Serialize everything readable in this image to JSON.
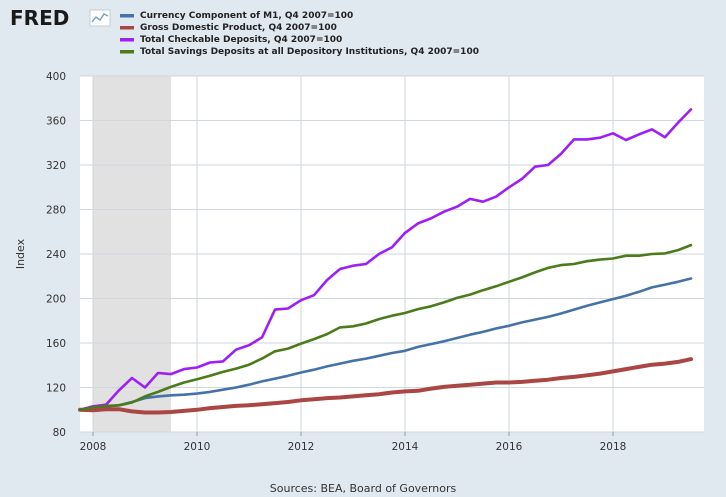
{
  "brand": {
    "name": "FRED",
    "logo_icon": "line-chart-icon"
  },
  "colors": {
    "background": "#e1e9f0",
    "plot_background": "#ffffff",
    "grid": "#d0d7de",
    "recession": "#e1e1e1"
  },
  "chart_data": {
    "type": "line",
    "xlim": [
      2007.75,
      2019.75
    ],
    "ylim": [
      80,
      400
    ],
    "ylabel": "Index",
    "xlabel": "",
    "x_ticks": [
      2008,
      2010,
      2012,
      2014,
      2016,
      2018
    ],
    "y_ticks": [
      80,
      120,
      160,
      200,
      240,
      280,
      320,
      360,
      400
    ],
    "grid": true,
    "legend_position": "top-left",
    "recession_shading": [
      [
        2008.0,
        2009.5
      ]
    ],
    "series": [
      {
        "name": "Currency Component of M1, Q4 2007=100",
        "color": "#4572a7",
        "x": [
          2007.75,
          2008.0,
          2008.25,
          2008.5,
          2008.75,
          2009.0,
          2009.25,
          2009.5,
          2009.75,
          2010.0,
          2010.25,
          2010.5,
          2010.75,
          2011.0,
          2011.25,
          2011.5,
          2011.75,
          2012.0,
          2012.25,
          2012.5,
          2012.75,
          2013.0,
          2013.25,
          2013.5,
          2013.75,
          2014.0,
          2014.25,
          2014.5,
          2014.75,
          2015.0,
          2015.25,
          2015.5,
          2015.75,
          2016.0,
          2016.25,
          2016.5,
          2016.75,
          2017.0,
          2017.25,
          2017.5,
          2017.75,
          2018.0,
          2018.25,
          2018.5,
          2018.75,
          2019.0,
          2019.25,
          2019.5
        ],
        "y": [
          100,
          101.5,
          103,
          104,
          107,
          110.5,
          112,
          113,
          113.5,
          114.5,
          116,
          118,
          120,
          122.5,
          125.5,
          128,
          130.5,
          133.5,
          136,
          139,
          141.5,
          144,
          146,
          148.5,
          151,
          153,
          156.5,
          159,
          161.5,
          164.5,
          167.5,
          170,
          173,
          175.5,
          178.5,
          181,
          183.5,
          186.5,
          190,
          193.5,
          196.5,
          199.5,
          202.5,
          206,
          210,
          212.5,
          215,
          218
        ]
      },
      {
        "name": "Gross Domestic Product, Q4 2007=100",
        "color": "#aa4643",
        "x": [
          2007.75,
          2008.0,
          2008.25,
          2008.5,
          2008.75,
          2009.0,
          2009.25,
          2009.5,
          2009.75,
          2010.0,
          2010.25,
          2010.5,
          2010.75,
          2011.0,
          2011.25,
          2011.5,
          2011.75,
          2012.0,
          2012.25,
          2012.5,
          2012.75,
          2013.0,
          2013.25,
          2013.5,
          2013.75,
          2014.0,
          2014.25,
          2014.5,
          2014.75,
          2015.0,
          2015.25,
          2015.5,
          2015.75,
          2016.0,
          2016.25,
          2016.5,
          2016.75,
          2017.0,
          2017.25,
          2017.5,
          2017.75,
          2018.0,
          2018.25,
          2018.5,
          2018.75,
          2019.0,
          2019.25,
          2019.5
        ],
        "y": [
          100,
          99.5,
          100.5,
          100.5,
          98.5,
          97.5,
          97.5,
          98,
          99,
          100,
          101.5,
          102.5,
          103.5,
          104,
          105,
          106,
          107,
          108.5,
          109.5,
          110.5,
          111,
          112,
          113,
          114,
          115.5,
          116.5,
          117,
          119,
          120.5,
          121.5,
          122.5,
          123.5,
          124.5,
          124.5,
          125,
          126,
          127,
          128.5,
          129.5,
          131,
          132.5,
          134.5,
          136.5,
          138.5,
          140.5,
          141.5,
          143,
          145.5
        ]
      },
      {
        "name": "Total Checkable Deposits, Q4 2007=100",
        "color": "#9e1ff5",
        "x": [
          2007.75,
          2008.0,
          2008.25,
          2008.5,
          2008.75,
          2009.0,
          2009.25,
          2009.5,
          2009.75,
          2010.0,
          2010.25,
          2010.5,
          2010.75,
          2011.0,
          2011.25,
          2011.5,
          2011.75,
          2012.0,
          2012.25,
          2012.5,
          2012.75,
          2013.0,
          2013.25,
          2013.5,
          2013.75,
          2014.0,
          2014.25,
          2014.5,
          2014.75,
          2015.0,
          2015.25,
          2015.5,
          2015.75,
          2016.0,
          2016.25,
          2016.5,
          2016.75,
          2017.0,
          2017.25,
          2017.5,
          2017.75,
          2018.0,
          2018.25,
          2018.5,
          2018.75,
          2019.0,
          2019.25,
          2019.5
        ],
        "y": [
          100,
          103,
          104.5,
          117.5,
          128.5,
          120,
          133,
          132,
          136.5,
          138,
          142.5,
          143.5,
          154,
          158,
          165,
          190,
          191,
          198.5,
          203,
          216.5,
          226.5,
          229.5,
          231,
          240,
          246,
          259,
          267.5,
          272,
          278,
          282.5,
          289.5,
          287,
          291.5,
          300,
          307.5,
          318.5,
          320,
          330,
          343,
          343,
          344.5,
          348.5,
          342.5,
          347.5,
          352,
          345,
          358,
          370
        ]
      },
      {
        "name": "Total Savings Deposits at all Depository Institutions, Q4 2007=100",
        "color": "#4b7b1a",
        "x": [
          2007.75,
          2008.0,
          2008.25,
          2008.5,
          2008.75,
          2009.0,
          2009.25,
          2009.5,
          2009.75,
          2010.0,
          2010.25,
          2010.5,
          2010.75,
          2011.0,
          2011.25,
          2011.5,
          2011.75,
          2012.0,
          2012.25,
          2012.5,
          2012.75,
          2013.0,
          2013.25,
          2013.5,
          2013.75,
          2014.0,
          2014.25,
          2014.5,
          2014.75,
          2015.0,
          2015.25,
          2015.5,
          2015.75,
          2016.0,
          2016.25,
          2016.5,
          2016.75,
          2017.0,
          2017.25,
          2017.5,
          2017.75,
          2018.0,
          2018.25,
          2018.5,
          2018.75,
          2019.0,
          2019.25,
          2019.5
        ],
        "y": [
          100,
          102,
          103.5,
          104,
          106.5,
          112,
          116,
          120.5,
          124.5,
          127.5,
          130.5,
          134,
          137,
          140.5,
          146,
          152.5,
          155,
          159.5,
          163.5,
          168,
          174,
          175,
          177.5,
          181.5,
          184.5,
          187,
          190.5,
          193,
          196.5,
          200.5,
          203.5,
          207.5,
          211,
          215,
          219,
          223.5,
          227.5,
          230,
          231,
          233.5,
          235,
          236,
          238.5,
          238.5,
          240,
          240.5,
          243.5,
          248
        ]
      }
    ]
  },
  "footer": {
    "source": "Sources: BEA, Board of Governors"
  }
}
